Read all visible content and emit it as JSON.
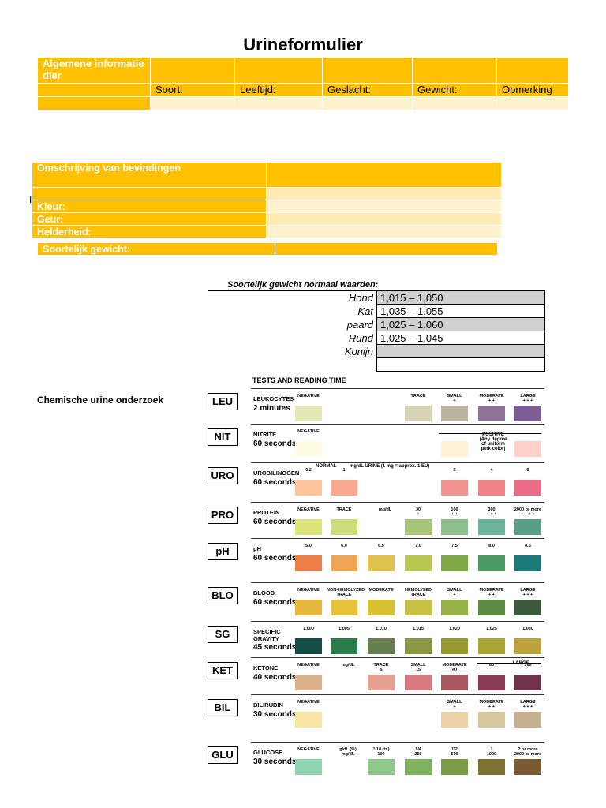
{
  "title": "Urineformulier",
  "info": {
    "header": "Algemene informatie dier",
    "fields": [
      "Soort:",
      "Leeftijd:",
      "Geslacht:",
      "Gewicht:",
      "Opmerking"
    ]
  },
  "bevindingen": {
    "header": "Omschrijving van bevindingen",
    "marker": "I",
    "rows": [
      "Kleur:",
      "Geur:",
      "Helderheid:"
    ],
    "sg_label": "Soortelijk gewicht:"
  },
  "normal_values": {
    "title": "Soortelijk gewicht normaal waarden:",
    "rows": [
      {
        "species": "Hond",
        "value": "1,015 – 1,050"
      },
      {
        "species": "Kat",
        "value": "1,035 – 1,055"
      },
      {
        "species": "paard",
        "value": "1,025 – 1,060"
      },
      {
        "species": "Rund",
        "value": "1,025 – 1,045"
      },
      {
        "species": "Konijn",
        "value": ""
      },
      {
        "species": "",
        "value": ""
      }
    ]
  },
  "chem_title": "Chemische urine onderzoek",
  "chart_header": "TESTS AND READING TIME",
  "tests": [
    {
      "code": "LEU",
      "name": "LEUKOCYTES",
      "time": "2 minutes",
      "pads": [
        {
          "label": "NEGATIVE",
          "color": "#e3e8b5"
        },
        {
          "label": "TRACE",
          "color": "#d6d4b3"
        },
        {
          "label": "SMALL\n+",
          "color": "#bbb39d"
        },
        {
          "label": "MODERATE\n+ +",
          "color": "#8e7397"
        },
        {
          "label": "LARGE\n+ + +",
          "color": "#7d5e94"
        }
      ]
    },
    {
      "code": "NIT",
      "name": "NITRITE",
      "time": "60 seconds",
      "pads": [
        {
          "label": "NEGATIVE",
          "color": "#fffde3"
        },
        {
          "label": "",
          "color": "#fff0d6"
        },
        {
          "label": "",
          "color": "#ffcfc8"
        }
      ],
      "note": "POSITIVE\n(Any degree\nof uniform\npink color)"
    },
    {
      "code": "URO",
      "name": "UROBILINOGEN",
      "time": "60 seconds",
      "pads": [
        {
          "label": "0.2",
          "color": "#fdc39a"
        },
        {
          "label": "1",
          "color": "#f8a98f"
        },
        {
          "label": "2",
          "color": "#f09490"
        },
        {
          "label": "4",
          "color": "#ef8488"
        },
        {
          "label": "8",
          "color": "#ec6b86"
        }
      ],
      "note": "NORMAL          mg/dL URINE (1 mg = approx. 1 EU)"
    },
    {
      "code": "PRO",
      "name": "PROTEIN",
      "time": "60 seconds",
      "pads": [
        {
          "label": "NEGATIVE",
          "color": "#dbe57a"
        },
        {
          "label": "TRACE",
          "color": "#cedd7c"
        },
        {
          "label": "30\n+",
          "color": "#a9c57a"
        },
        {
          "label": "100\n+ +",
          "color": "#8dbf8c"
        },
        {
          "label": "300\n+ + +",
          "color": "#6db59a"
        },
        {
          "label": "2000 or more\n+ + + +",
          "color": "#5a9f84"
        }
      ],
      "unit": "mg/dL"
    },
    {
      "code": "pH",
      "name": "pH",
      "time": "60 seconds",
      "pads": [
        {
          "label": "5.0",
          "color": "#ee7e48"
        },
        {
          "label": "6.0",
          "color": "#eea553"
        },
        {
          "label": "6.5",
          "color": "#dfc24e"
        },
        {
          "label": "7.0",
          "color": "#bac753"
        },
        {
          "label": "7.5",
          "color": "#7fa947"
        },
        {
          "label": "8.0",
          "color": "#4a9a63"
        },
        {
          "label": "8.5",
          "color": "#1b7a78"
        }
      ]
    },
    {
      "code": "BLO",
      "name": "BLOOD",
      "time": "60 seconds",
      "pads": [
        {
          "label": "NEGATIVE",
          "color": "#e8b93f"
        },
        {
          "label": "NON-HEMOLYZED\nTRACE",
          "color": "#e6c23a"
        },
        {
          "label": "MODERATE",
          "color": "#d8c230"
        },
        {
          "label": "HEMOLYZED\nTRACE",
          "color": "#c8c143"
        },
        {
          "label": "SMALL\n+",
          "color": "#97b347"
        },
        {
          "label": "MODERATE\n+ +",
          "color": "#5c8d42"
        },
        {
          "label": "LARGE\n+ + +",
          "color": "#3a5a3c"
        }
      ]
    },
    {
      "code": "SG",
      "name": "SPECIFIC\nGRAVITY",
      "time": "45 seconds",
      "pads": [
        {
          "label": "1.000",
          "color": "#154d46"
        },
        {
          "label": "1.005",
          "color": "#2a7c4a"
        },
        {
          "label": "1.010",
          "color": "#657f4e"
        },
        {
          "label": "1.015",
          "color": "#8b9642"
        },
        {
          "label": "1.020",
          "color": "#97992f"
        },
        {
          "label": "1.025",
          "color": "#a9a532"
        },
        {
          "label": "1.030",
          "color": "#bda23b"
        }
      ]
    },
    {
      "code": "KET",
      "name": "KETONE",
      "time": "40 seconds",
      "pads": [
        {
          "label": "NEGATIVE",
          "color": "#dcb28d"
        },
        {
          "label": "TRACE\n5",
          "color": "#e6a193"
        },
        {
          "label": "SMALL\n15",
          "color": "#d77b7e"
        },
        {
          "label": "MODERATE\n40",
          "color": "#aa5862"
        },
        {
          "label": "80",
          "color": "#8b3b51"
        },
        {
          "label": "160",
          "color": "#6f3248"
        }
      ],
      "unit": "mg/dL",
      "note": "LARGE"
    },
    {
      "code": "BIL",
      "name": "BILIRUBIN",
      "time": "30 seconds",
      "pads": [
        {
          "label": "NEGATIVE",
          "color": "#f8e5a6"
        },
        {
          "label": "SMALL\n+",
          "color": "#ecd3a7"
        },
        {
          "label": "MODERATE\n+ +",
          "color": "#d5c8a0"
        },
        {
          "label": "LARGE\n+ + +",
          "color": "#c6b090"
        }
      ]
    },
    {
      "code": "GLU",
      "name": "GLUCOSE",
      "time": "30 seconds",
      "pads": [
        {
          "label": "NEGATIVE",
          "color": "#8fd3b0"
        },
        {
          "label": "1/10 (tr.)\n100",
          "color": "#8ec98b"
        },
        {
          "label": "1/4\n250",
          "color": "#7eb25e"
        },
        {
          "label": "1/2\n500",
          "color": "#7b9b44"
        },
        {
          "label": "1\n1000",
          "color": "#7c7330"
        },
        {
          "label": "2 or more\n2000 or more",
          "color": "#7a5a33"
        }
      ],
      "unit": "g/dL (%)\nmg/dL"
    }
  ]
}
